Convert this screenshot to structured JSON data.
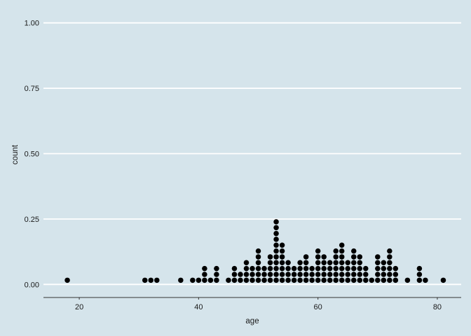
{
  "chart_data": {
    "type": "dotplot",
    "xlabel": "age",
    "ylabel": "count",
    "xlim": [
      14,
      84
    ],
    "ylim": [
      -0.05,
      1.05
    ],
    "x_ticks": [
      20,
      40,
      60,
      80
    ],
    "x_tick_labels": [
      "20",
      "40",
      "60",
      "80"
    ],
    "y_ticks": [
      0,
      0.25,
      0.5,
      0.75,
      1
    ],
    "y_tick_labels": [
      "0.00",
      "0.25",
      "0.50",
      "0.75",
      "1.00"
    ],
    "grid": "horizontal major lines only",
    "dot_color": "#000000",
    "background_color": "#d5e4eb",
    "grid_color": "#ffffff",
    "bin_width": 1,
    "stacks": [
      {
        "x": 18,
        "n": 1
      },
      {
        "x": 31,
        "n": 1
      },
      {
        "x": 32,
        "n": 1
      },
      {
        "x": 33,
        "n": 1
      },
      {
        "x": 37,
        "n": 1
      },
      {
        "x": 39,
        "n": 1
      },
      {
        "x": 40,
        "n": 1
      },
      {
        "x": 41,
        "n": 3
      },
      {
        "x": 42,
        "n": 1
      },
      {
        "x": 43,
        "n": 3
      },
      {
        "x": 45,
        "n": 1
      },
      {
        "x": 46,
        "n": 3
      },
      {
        "x": 47,
        "n": 2
      },
      {
        "x": 48,
        "n": 4
      },
      {
        "x": 49,
        "n": 3
      },
      {
        "x": 50,
        "n": 6
      },
      {
        "x": 51,
        "n": 3
      },
      {
        "x": 52,
        "n": 5
      },
      {
        "x": 53,
        "n": 11
      },
      {
        "x": 54,
        "n": 7
      },
      {
        "x": 55,
        "n": 4
      },
      {
        "x": 56,
        "n": 3
      },
      {
        "x": 57,
        "n": 4
      },
      {
        "x": 58,
        "n": 5
      },
      {
        "x": 59,
        "n": 3
      },
      {
        "x": 60,
        "n": 6
      },
      {
        "x": 61,
        "n": 5
      },
      {
        "x": 62,
        "n": 4
      },
      {
        "x": 63,
        "n": 6
      },
      {
        "x": 64,
        "n": 7
      },
      {
        "x": 65,
        "n": 4
      },
      {
        "x": 66,
        "n": 6
      },
      {
        "x": 67,
        "n": 5
      },
      {
        "x": 68,
        "n": 3
      },
      {
        "x": 69,
        "n": 1
      },
      {
        "x": 70,
        "n": 5
      },
      {
        "x": 71,
        "n": 4
      },
      {
        "x": 72,
        "n": 6
      },
      {
        "x": 73,
        "n": 3
      },
      {
        "x": 75,
        "n": 1
      },
      {
        "x": 77,
        "n": 3
      },
      {
        "x": 78,
        "n": 1
      },
      {
        "x": 81,
        "n": 1
      }
    ]
  }
}
